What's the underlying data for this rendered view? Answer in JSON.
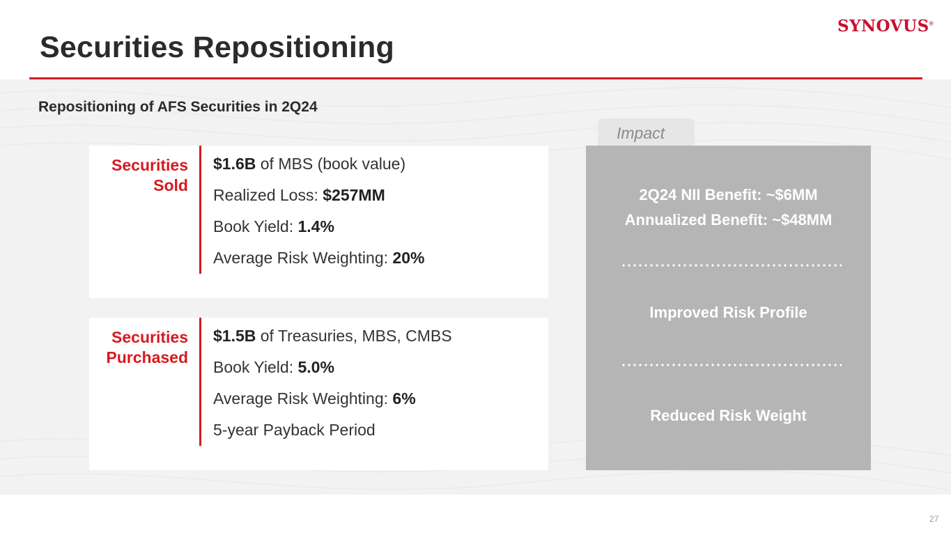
{
  "header": {
    "title": "Securities Repositioning",
    "logo_text": "SYNOVUS",
    "logo_mark": "®",
    "accent_color": "#d71920"
  },
  "subtitle": "Repositioning of AFS Securities in 2Q24",
  "sold": {
    "label_line1": "Securities",
    "label_line2": "Sold",
    "lines": [
      {
        "bold": "$1.6B",
        "rest": " of MBS (book value)"
      },
      {
        "prefix": "Realized Loss: ",
        "bold": "$257MM"
      },
      {
        "prefix": "Book Yield: ",
        "bold": "1.4%"
      },
      {
        "prefix": "Average Risk Weighting: ",
        "bold": "20%"
      }
    ]
  },
  "purchased": {
    "label_line1": "Securities",
    "label_line2": "Purchased",
    "lines": [
      {
        "bold": "$1.5B",
        "rest": " of Treasuries, MBS, CMBS"
      },
      {
        "prefix": "Book Yield: ",
        "bold": "5.0%"
      },
      {
        "prefix": "Average Risk Weighting: ",
        "bold": "6%"
      },
      {
        "text": "5-year Payback Period"
      }
    ]
  },
  "impact": {
    "tab_label": "Impact",
    "nii_benefit": "2Q24 NII Benefit: ~$6MM",
    "annualized_benefit": "Annualized Benefit: ~$48MM",
    "risk_profile": "Improved Risk Profile",
    "risk_weight": "Reduced Risk Weight"
  },
  "page_number": "27"
}
